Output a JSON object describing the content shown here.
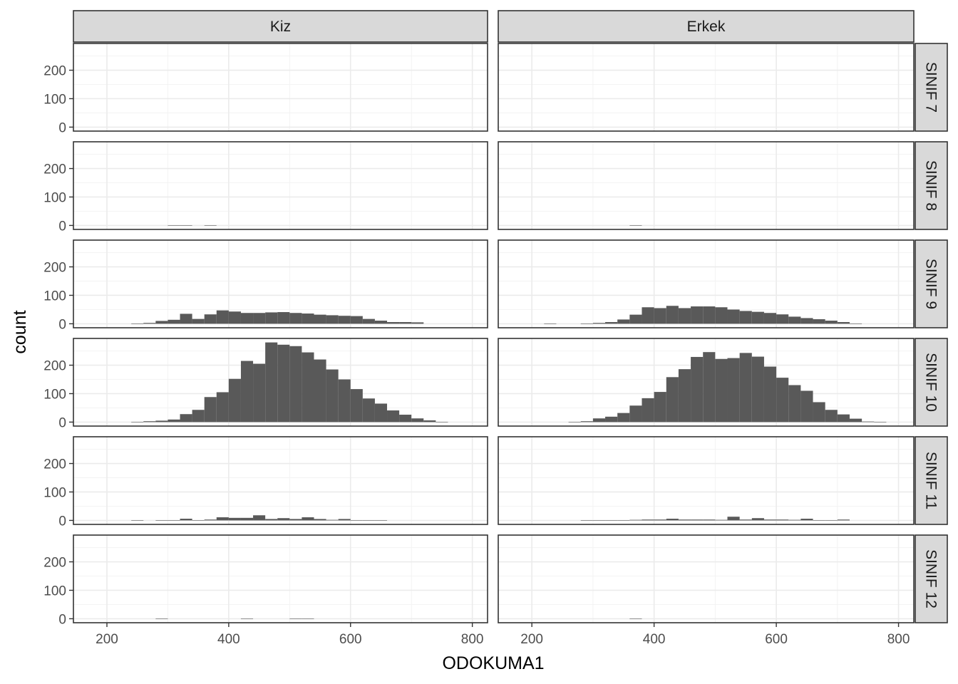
{
  "chart_data": {
    "type": "bar",
    "facet_columns": [
      "Kiz",
      "Erkek"
    ],
    "facet_rows": [
      "SINIF 7",
      "SINIF 8",
      "SINIF 9",
      "SINIF 10",
      "SINIF 11",
      "SINIF 12"
    ],
    "xlabel": "ODOKUMA1",
    "ylabel": "count",
    "xlim": [
      145,
      825
    ],
    "ylim": [
      -14,
      294
    ],
    "x_ticks": [
      200,
      400,
      600,
      800
    ],
    "y_ticks": [
      0,
      100,
      200
    ],
    "bin_start": 180,
    "bin_width": 20,
    "bar_color": "#595959",
    "grid": true,
    "theme": "bw",
    "counts": {
      "Kiz": {
        "SINIF 7": [],
        "SINIF 8": [
          0,
          0,
          0,
          0,
          0,
          0,
          1,
          1,
          0,
          1,
          0,
          0,
          0,
          0,
          0,
          0,
          0,
          0,
          0,
          0,
          0,
          0,
          0,
          0,
          0,
          0,
          0,
          0,
          0,
          0
        ],
        "SINIF 9": [
          0,
          0,
          0,
          1,
          3,
          10,
          14,
          35,
          17,
          33,
          47,
          43,
          38,
          38,
          40,
          41,
          38,
          36,
          32,
          30,
          28,
          27,
          17,
          11,
          6,
          6,
          5,
          0,
          0,
          0
        ],
        "SINIF 10": [
          0,
          0,
          0,
          1,
          3,
          5,
          9,
          28,
          43,
          88,
          105,
          152,
          215,
          205,
          280,
          272,
          267,
          245,
          220,
          185,
          150,
          116,
          83,
          65,
          41,
          26,
          13,
          6,
          1,
          0
        ],
        "SINIF 11": [
          0,
          0,
          0,
          1,
          0,
          1,
          1,
          6,
          1,
          3,
          11,
          9,
          9,
          18,
          5,
          8,
          5,
          11,
          5,
          2,
          5,
          1,
          1,
          1,
          0,
          0,
          0,
          0,
          0,
          0
        ],
        "SINIF 12": [
          0,
          0,
          0,
          0,
          0,
          1,
          0,
          0,
          0,
          0,
          0,
          0,
          1,
          0,
          0,
          0,
          1,
          1,
          0,
          0,
          0,
          0,
          0,
          0,
          0,
          0,
          0,
          0,
          0,
          0
        ]
      },
      "Erkek": {
        "SINIF 7": [],
        "SINIF 8": [
          0,
          0,
          0,
          0,
          0,
          0,
          0,
          0,
          0,
          1,
          0,
          0,
          0,
          0,
          0,
          0,
          0,
          0,
          0,
          0,
          0,
          0,
          0,
          0,
          0,
          0,
          0,
          0,
          0,
          0
        ],
        "SINIF 9": [
          0,
          0,
          1,
          0,
          0,
          1,
          3,
          6,
          15,
          32,
          58,
          55,
          63,
          55,
          61,
          61,
          58,
          50,
          45,
          42,
          38,
          33,
          25,
          20,
          16,
          11,
          6,
          1,
          0,
          0
        ],
        "SINIF 10": [
          0,
          0,
          0,
          0,
          1,
          3,
          13,
          19,
          32,
          58,
          84,
          106,
          158,
          186,
          229,
          246,
          222,
          225,
          243,
          230,
          195,
          156,
          130,
          110,
          70,
          43,
          27,
          12,
          2,
          1
        ],
        "SINIF 11": [
          0,
          0,
          0,
          0,
          0,
          1,
          1,
          1,
          1,
          2,
          3,
          3,
          6,
          3,
          3,
          3,
          2,
          13,
          3,
          8,
          3,
          3,
          2,
          6,
          1,
          1,
          3,
          0,
          0,
          0
        ],
        "SINIF 12": [
          0,
          0,
          0,
          0,
          0,
          0,
          0,
          0,
          0,
          1,
          0,
          0,
          0,
          0,
          0,
          0,
          0,
          0,
          0,
          0,
          0,
          0,
          0,
          0,
          0,
          0,
          0,
          0,
          0,
          0
        ]
      }
    }
  }
}
